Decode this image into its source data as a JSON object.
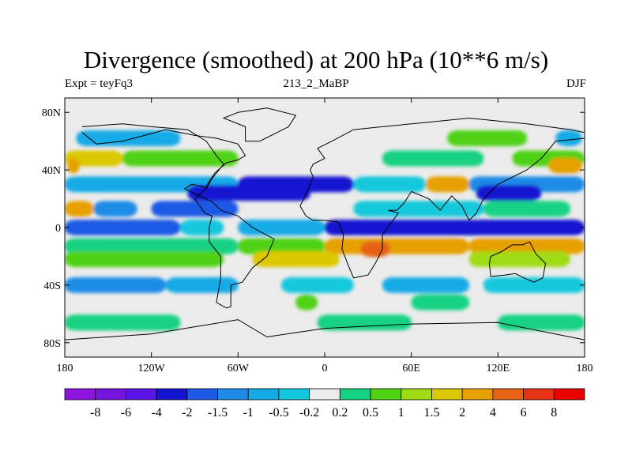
{
  "title": "Divergence (smoothed) at 200 hPa (10**6 m/s)",
  "left_label": "Expt = teyFq3",
  "center_label": "213_2_MaBP",
  "right_label": "DJF",
  "chart_data": {
    "type": "filled-contour-map",
    "variable": "Divergence (smoothed)",
    "level": "200 hPa",
    "units": "10**6 m/s",
    "x_range": [
      -180,
      180
    ],
    "y_range": [
      -90,
      90
    ],
    "x_ticks": [
      {
        "value": -180,
        "label": "180"
      },
      {
        "value": -120,
        "label": "120W"
      },
      {
        "value": -60,
        "label": "60W"
      },
      {
        "value": 0,
        "label": "0"
      },
      {
        "value": 60,
        "label": "60E"
      },
      {
        "value": 120,
        "label": "120E"
      },
      {
        "value": 180,
        "label": "180"
      }
    ],
    "y_ticks": [
      {
        "value": 80,
        "label": "80N"
      },
      {
        "value": 40,
        "label": "40N"
      },
      {
        "value": 0,
        "label": "0"
      },
      {
        "value": -40,
        "label": "40S"
      },
      {
        "value": -80,
        "label": "80S"
      }
    ],
    "colorbar": {
      "labels": [
        "-8",
        "-6",
        "-4",
        "-2",
        "-1.5",
        "-1",
        "-0.5",
        "-0.2",
        "0.2",
        "0.5",
        "1",
        "1.5",
        "2",
        "4",
        "6",
        "8"
      ],
      "colors": [
        "#8C14DC",
        "#7314E1",
        "#5A14E6",
        "#1414D2",
        "#1E5AE6",
        "#1E8CE6",
        "#14AAE6",
        "#14C8DC",
        "#EBEBEB",
        "#14D282",
        "#50D214",
        "#A0DC14",
        "#DCC800",
        "#E6A000",
        "#E66414",
        "#E63214",
        "#EB0000"
      ]
    },
    "bands": [
      {
        "lat": 62,
        "segments": [
          [
            -172,
            -100,
            "#14AAE6"
          ],
          [
            85,
            140,
            "#50D214"
          ],
          [
            160,
            178,
            "#14AAE6"
          ]
        ]
      },
      {
        "lat": 48,
        "segments": [
          [
            -180,
            -140,
            "#DCC800"
          ],
          [
            -140,
            -60,
            "#50D214"
          ],
          [
            40,
            110,
            "#14D282"
          ],
          [
            130,
            180,
            "#50D214"
          ]
        ]
      },
      {
        "lat": 43,
        "segments": [
          [
            -178,
            -170,
            "#E6A000"
          ],
          [
            155,
            178,
            "#E6A000"
          ]
        ]
      },
      {
        "lat": 30,
        "segments": [
          [
            -180,
            -60,
            "#14AAE6"
          ],
          [
            -60,
            20,
            "#1414D2"
          ],
          [
            20,
            70,
            "#14C8DC"
          ],
          [
            70,
            100,
            "#E6A000"
          ],
          [
            100,
            180,
            "#1E8CE6"
          ]
        ]
      },
      {
        "lat": 24,
        "segments": [
          [
            -95,
            -10,
            "#1414D2"
          ],
          [
            105,
            150,
            "#1414D2"
          ]
        ]
      },
      {
        "lat": 13,
        "segments": [
          [
            -180,
            -160,
            "#E6A000"
          ],
          [
            -160,
            -130,
            "#1E8CE6"
          ],
          [
            -120,
            -60,
            "#1E5AE6"
          ],
          [
            20,
            110,
            "#14C8DC"
          ],
          [
            110,
            170,
            "#14D282"
          ]
        ]
      },
      {
        "lat": 0,
        "segments": [
          [
            -180,
            -100,
            "#1E5AE6"
          ],
          [
            -100,
            -70,
            "#14C8DC"
          ],
          [
            -60,
            0,
            "#14AAE6"
          ],
          [
            0,
            180,
            "#1414D2"
          ]
        ]
      },
      {
        "lat": -13,
        "segments": [
          [
            -180,
            -60,
            "#14D282"
          ],
          [
            -60,
            0,
            "#50D214"
          ],
          [
            0,
            100,
            "#E6A000"
          ],
          [
            100,
            180,
            "#E6A000"
          ]
        ]
      },
      {
        "lat": -15,
        "segments": [
          [
            25,
            45,
            "#E66414"
          ]
        ]
      },
      {
        "lat": -22,
        "segments": [
          [
            -180,
            -70,
            "#50D214"
          ],
          [
            -50,
            10,
            "#DCC800"
          ],
          [
            100,
            170,
            "#A0DC14"
          ]
        ]
      },
      {
        "lat": -40,
        "segments": [
          [
            -180,
            -110,
            "#1E8CE6"
          ],
          [
            -110,
            -60,
            "#14AAE6"
          ],
          [
            -30,
            20,
            "#14C8DC"
          ],
          [
            40,
            100,
            "#14AAE6"
          ],
          [
            110,
            180,
            "#14C8DC"
          ]
        ]
      },
      {
        "lat": -52,
        "segments": [
          [
            -20,
            -5,
            "#50D214"
          ],
          [
            60,
            100,
            "#14D282"
          ]
        ]
      },
      {
        "lat": -66,
        "segments": [
          [
            -180,
            -100,
            "#14D282"
          ],
          [
            -5,
            60,
            "#14D282"
          ],
          [
            120,
            180,
            "#14D282"
          ]
        ]
      }
    ]
  }
}
